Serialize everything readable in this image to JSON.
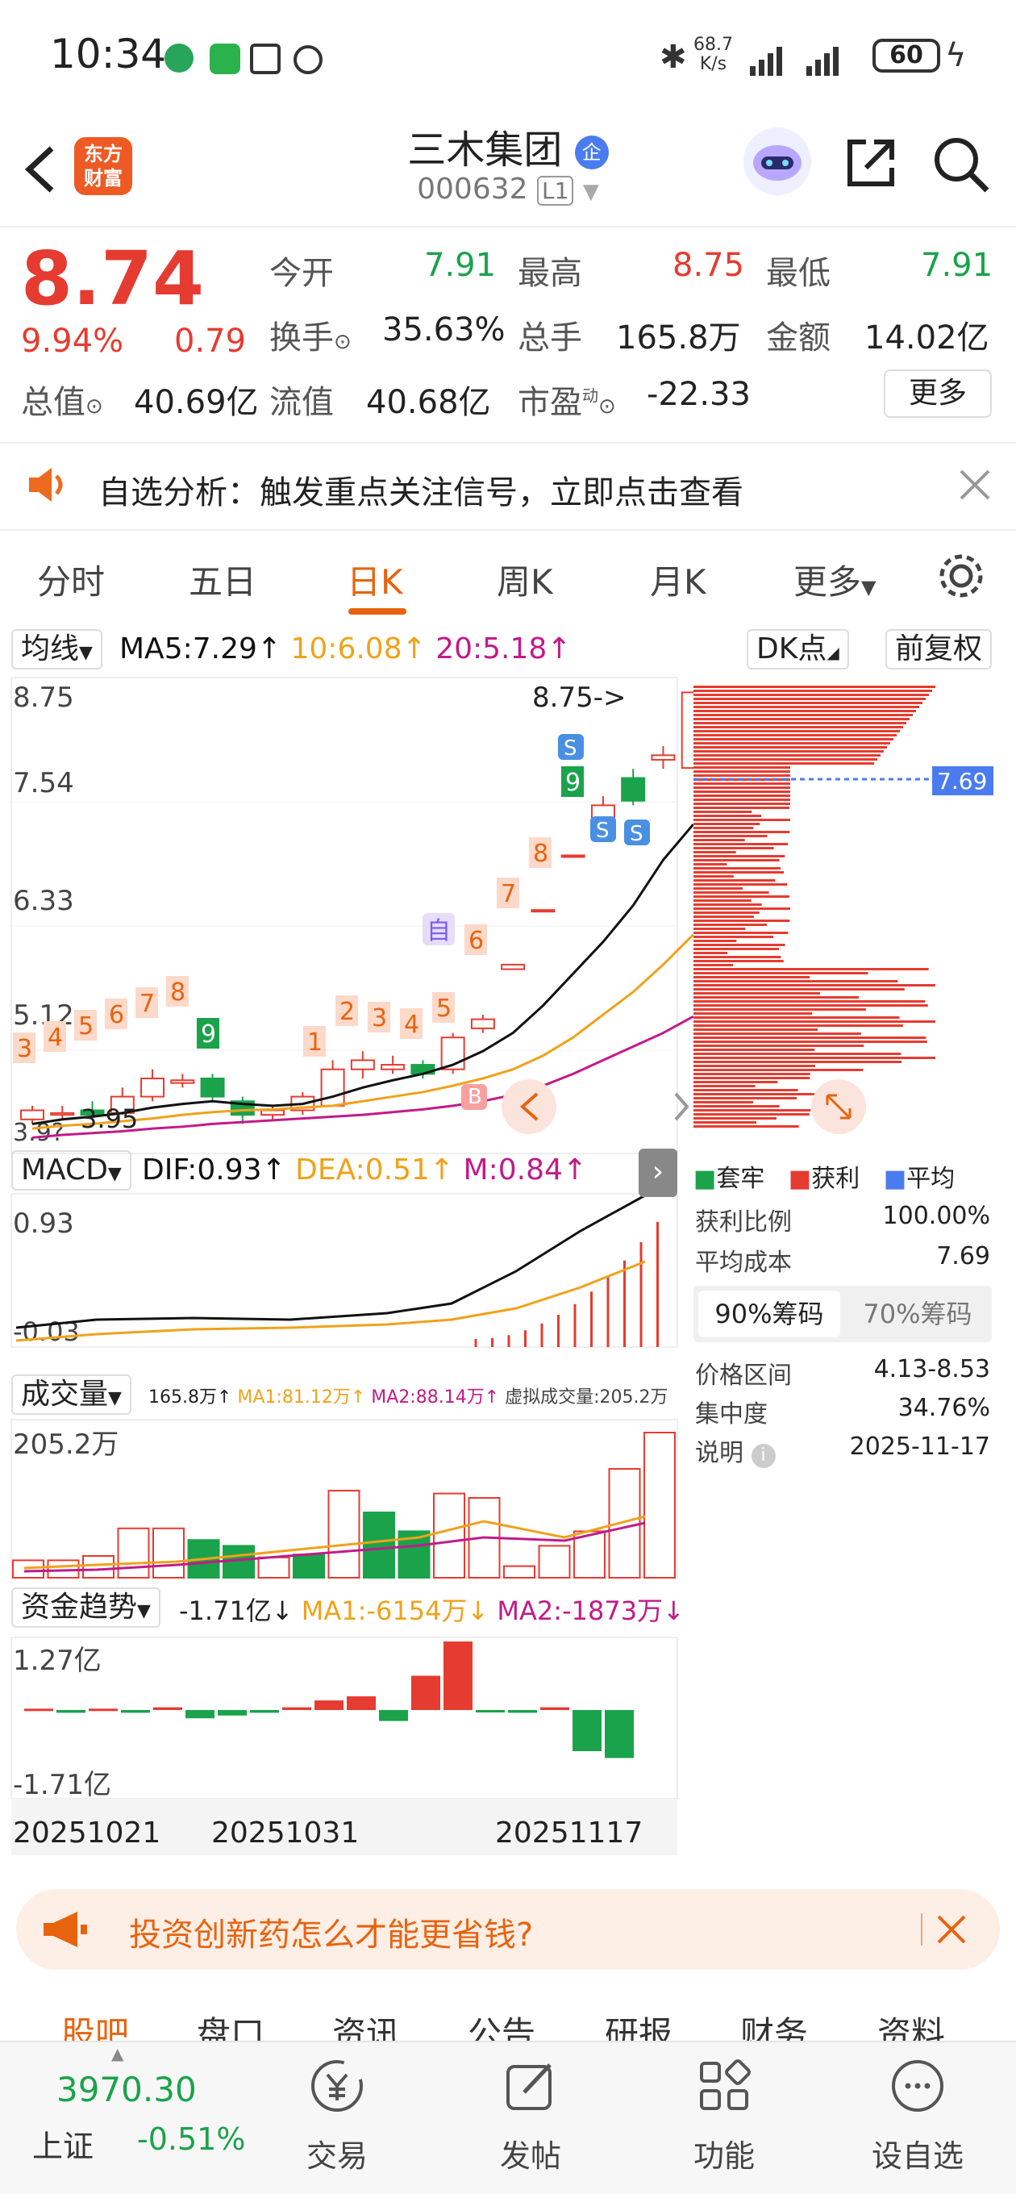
{
  "status": {
    "time": "10:34",
    "net_speed": "68.7",
    "net_unit": "K/s",
    "battery": "60"
  },
  "header": {
    "logo_line1": "东方",
    "logo_line2": "财富",
    "title": "三木集团",
    "title_badge": "企",
    "code": "000632",
    "level": "L1"
  },
  "quote": {
    "price": "8.74",
    "pct": "9.94%",
    "chg": "0.79",
    "open_lbl": "今开",
    "open": "7.91",
    "high_lbl": "最高",
    "high": "8.75",
    "low_lbl": "最低",
    "low": "7.91",
    "turnover_lbl": "换手",
    "turnover": "35.63%",
    "vol_lbl": "总手",
    "vol": "165.8万",
    "amount_lbl": "金额",
    "amount": "14.02亿",
    "mktcap_lbl": "总值",
    "mktcap": "40.69亿",
    "float_lbl": "流值",
    "float": "40.68亿",
    "pe_lbl": "市盈",
    "pe_sup": "动",
    "pe": "-22.33",
    "more": "更多"
  },
  "notice": {
    "text": "自选分析：触发重点关注信号，立即点击查看"
  },
  "tabs": [
    "分时",
    "五日",
    "日K",
    "周K",
    "月K",
    "更多"
  ],
  "active_tab": 2,
  "kline_bar": {
    "ma_select": "均线",
    "ma5": "MA5:7.29↑",
    "ma10": "10:6.08↑",
    "ma20": "20:5.18↑",
    "dk": "DK点",
    "fq": "前复权"
  },
  "kline": {
    "y_labels": [
      "8.75",
      "7.54",
      "6.33",
      "5.12",
      "3.9?"
    ],
    "high_tag": "8.75->",
    "low_tag": "3.95",
    "right_tag": "7.69",
    "marker_zi": "自",
    "x_labels": [
      "20251021",
      "20251031",
      "20251117"
    ]
  },
  "macd": {
    "select": "MACD",
    "dif": "DIF:0.93↑",
    "dea": "DEA:0.51↑",
    "m": "M:0.84↑",
    "y_top": "0.93",
    "y_bottom": "-0.03"
  },
  "volume": {
    "select": "成交量",
    "v": "165.8万↑",
    "ma1": "MA1:81.12万↑",
    "ma2": "MA2:88.14万↑",
    "virtual": "虚拟成交量:205.2万",
    "y_top": "205.2万"
  },
  "fund": {
    "select": "资金趋势",
    "v": "-1.71亿↓",
    "ma1": "MA1:-6154万↓",
    "ma2": "MA2:-1873万↓",
    "y_top": "1.27亿",
    "y_bottom": "-1.71亿"
  },
  "chips": {
    "legend": [
      "套牢",
      "获利",
      "平均"
    ],
    "rows": [
      {
        "label": "获利比例",
        "value": "100.00%"
      },
      {
        "label": "平均成本",
        "value": "7.69"
      }
    ],
    "tab90": "90%筹码",
    "tab70": "70%筹码",
    "rows2": [
      {
        "label": "价格区间",
        "value": "4.13-8.53"
      },
      {
        "label": "集中度",
        "value": "34.76%"
      },
      {
        "label": "说明",
        "value": "2025-11-17"
      }
    ]
  },
  "banner": {
    "text": "投资创新药怎么才能更省钱?"
  },
  "bottom_tabs": [
    "股吧",
    "盘口",
    "资讯",
    "公告",
    "研报",
    "财务",
    "资料"
  ],
  "footer": {
    "index_value": "3970.30",
    "index_name": "上证",
    "index_pct": "-0.51%",
    "items": [
      "交易",
      "发帖",
      "功能",
      "设自选"
    ]
  },
  "colors": {
    "up": "#e63b30",
    "down": "#1aa34a",
    "accent": "#e8630e",
    "ma5": "#111111",
    "ma10": "#f0a21a",
    "ma20": "#c21a8a"
  }
}
